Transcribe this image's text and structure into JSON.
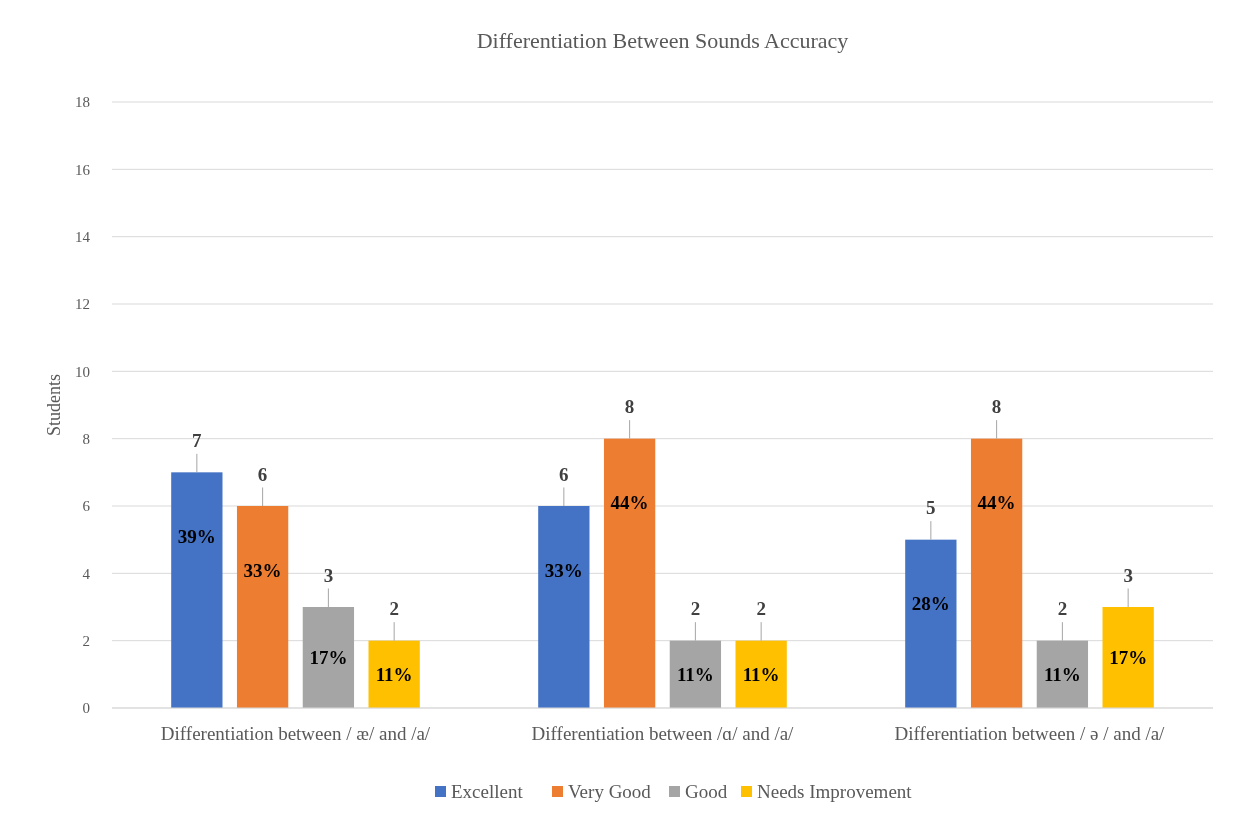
{
  "chart_data": {
    "type": "bar",
    "title": "Differentiation Between Sounds Accuracy",
    "ylabel": "Students",
    "categories": [
      "Differentiation between / æ/ and /a/",
      "Differentiation between /ɑ/ and /a/",
      "Differentiation between / ə / and /a/"
    ],
    "series": [
      {
        "name": "Excellent",
        "color": "#4472c4",
        "values": [
          7,
          6,
          5
        ]
      },
      {
        "name": "Very Good",
        "color": "#ed7d31",
        "values": [
          6,
          8,
          8
        ]
      },
      {
        "name": "Good",
        "color": "#a5a5a5",
        "values": [
          3,
          2,
          2
        ]
      },
      {
        "name": "Needs Improvement",
        "color": "#ffc000",
        "values": [
          2,
          2,
          3
        ]
      }
    ],
    "annotations": [
      "39%",
      "33%",
      "17%",
      "11%",
      "33%",
      "44%",
      "11%",
      "11%",
      "28%",
      "44%",
      "11%",
      "17%"
    ],
    "ylim": [
      0,
      18
    ],
    "yticks": [
      0,
      2,
      4,
      6,
      8,
      10,
      12,
      14,
      16,
      18
    ],
    "grid": "y",
    "legend": "bottom",
    "data_labels": true
  }
}
